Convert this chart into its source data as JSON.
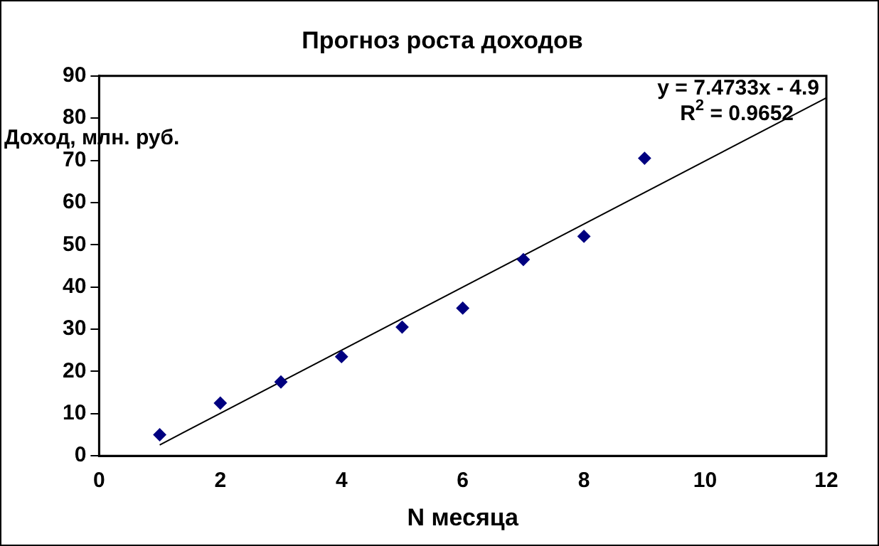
{
  "chart_data": {
    "type": "scatter",
    "title": "Прогноз роста доходов",
    "xlabel": "N месяца",
    "ylabel": "Доход, млн. руб.",
    "x": [
      1,
      2,
      3,
      4,
      5,
      6,
      7,
      8,
      9
    ],
    "series": [
      {
        "type": "scatter",
        "color": "#000080",
        "marker": "diamond",
        "values": [
          5,
          12.5,
          17.5,
          23.5,
          30.5,
          35,
          46.5,
          52,
          70.5
        ]
      },
      {
        "type": "line",
        "color": "#000000",
        "marker": "none",
        "x": [
          1,
          12
        ],
        "values": [
          2.6,
          84.8
        ]
      }
    ],
    "xlim": [
      0,
      12
    ],
    "xticks": [
      0,
      2,
      4,
      6,
      8,
      10,
      12
    ],
    "ylim": [
      0,
      90
    ],
    "yticks": [
      0,
      10,
      20,
      30,
      40,
      50,
      60,
      70,
      80,
      90
    ],
    "grid": false,
    "legend": false,
    "annotations": [
      "y = 7.4733x - 4.9",
      "R$^{2}$ = 0.9652"
    ]
  }
}
